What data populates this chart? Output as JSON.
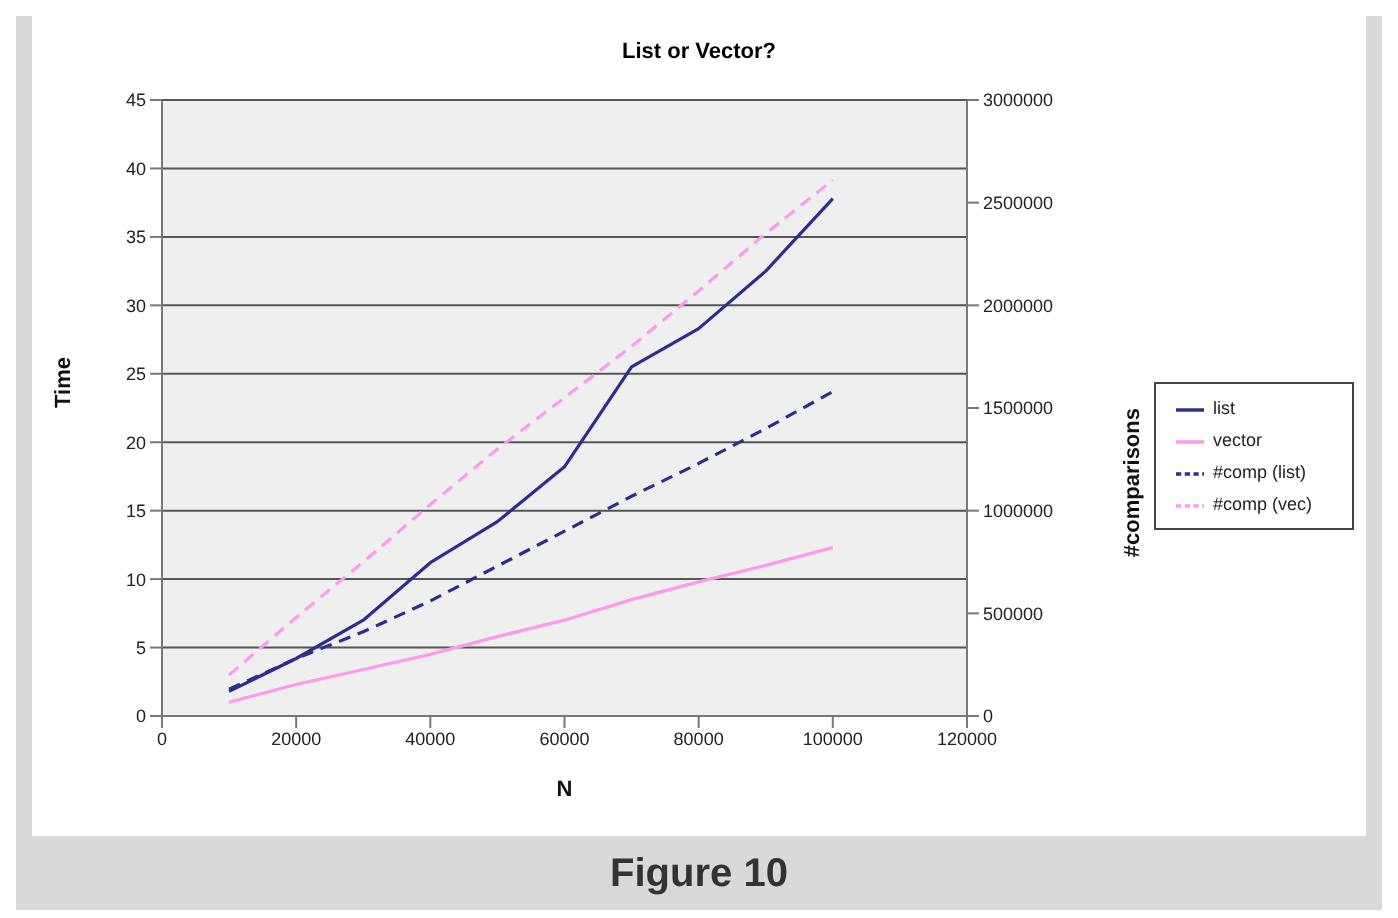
{
  "chart_data": {
    "type": "line",
    "title": "List or Vector?",
    "xlabel": "N",
    "ylabel": "Time",
    "y2label": "#comparisons",
    "x": [
      10000,
      20000,
      30000,
      40000,
      50000,
      60000,
      70000,
      80000,
      90000,
      100000
    ],
    "series": [
      {
        "name": "list",
        "color": "#2e2e8a",
        "line_style": "solid",
        "values": [
          1.8,
          4.2,
          7,
          11.2,
          14.2,
          18.2,
          25.5,
          28.3,
          32.5,
          37.8
        ]
      },
      {
        "name": "vector",
        "color": "#ff99ee",
        "line_style": "solid",
        "values": [
          1,
          2.3,
          3.4,
          4.5,
          5.8,
          7,
          8.5,
          9.8,
          11,
          12.3
        ]
      },
      {
        "name": "#comp (list)",
        "color": "#2e2e8a",
        "line_style": "dashed",
        "axis": "y2",
        "values": [
          130000,
          280000,
          410000,
          560000,
          730000,
          900000,
          1070000,
          1230000,
          1400000,
          1580000
        ]
      },
      {
        "name": "#comp (vec)",
        "color": "#ff99ee",
        "line_style": "dashed",
        "axis": "y2",
        "values": [
          200000,
          480000,
          750000,
          1030000,
          1300000,
          1550000,
          1800000,
          2070000,
          2350000,
          2610000
        ]
      }
    ],
    "xlim": [
      0,
      120000
    ],
    "xticks": [
      0,
      20000,
      40000,
      60000,
      80000,
      100000,
      120000
    ],
    "ylim": [
      0,
      45
    ],
    "yticks": [
      0,
      5,
      10,
      15,
      20,
      25,
      30,
      35,
      40,
      45
    ],
    "y2lim": [
      0,
      3000000
    ],
    "y2ticks": [
      0,
      500000,
      1000000,
      1500000,
      2000000,
      2500000,
      3000000
    ],
    "grid": "y",
    "legend": "right",
    "annotations": [
      "Figure 10"
    ]
  }
}
